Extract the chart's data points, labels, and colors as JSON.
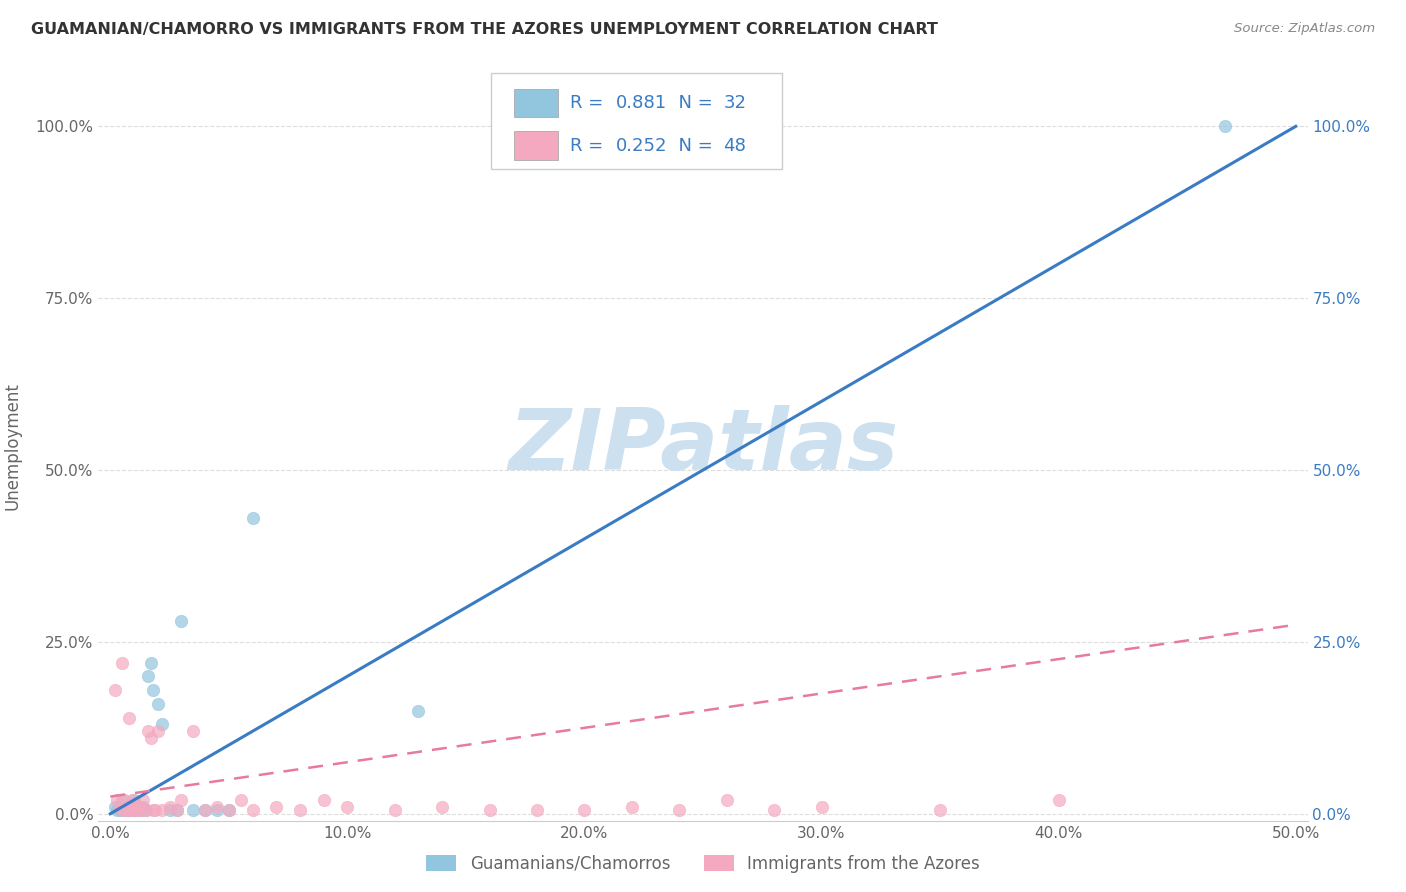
{
  "title": "GUAMANIAN/CHAMORRO VS IMMIGRANTS FROM THE AZORES UNEMPLOYMENT CORRELATION CHART",
  "source": "Source: ZipAtlas.com",
  "ylabel": "Unemployment",
  "x_ticks": [
    0.0,
    0.1,
    0.2,
    0.3,
    0.4,
    0.5
  ],
  "x_tick_labels": [
    "0.0%",
    "10.0%",
    "20.0%",
    "30.0%",
    "40.0%",
    "50.0%"
  ],
  "y_ticks": [
    0.0,
    0.25,
    0.5,
    0.75,
    1.0
  ],
  "y_tick_labels": [
    "0.0%",
    "25.0%",
    "50.0%",
    "75.0%",
    "100.0%"
  ],
  "xlim": [
    -0.005,
    0.505
  ],
  "ylim": [
    -0.01,
    1.08
  ],
  "blue_scatter_x": [
    0.002,
    0.003,
    0.004,
    0.005,
    0.005,
    0.006,
    0.007,
    0.007,
    0.008,
    0.009,
    0.01,
    0.01,
    0.011,
    0.012,
    0.013,
    0.014,
    0.015,
    0.016,
    0.017,
    0.018,
    0.02,
    0.022,
    0.025,
    0.028,
    0.03,
    0.035,
    0.04,
    0.045,
    0.05,
    0.06,
    0.13,
    0.47
  ],
  "blue_scatter_y": [
    0.01,
    0.005,
    0.005,
    0.01,
    0.02,
    0.005,
    0.01,
    0.005,
    0.005,
    0.01,
    0.005,
    0.02,
    0.005,
    0.01,
    0.005,
    0.01,
    0.005,
    0.2,
    0.22,
    0.18,
    0.16,
    0.13,
    0.005,
    0.005,
    0.28,
    0.005,
    0.005,
    0.005,
    0.005,
    0.43,
    0.15,
    1.0
  ],
  "pink_scatter_x": [
    0.002,
    0.003,
    0.004,
    0.005,
    0.005,
    0.006,
    0.007,
    0.008,
    0.008,
    0.009,
    0.01,
    0.01,
    0.011,
    0.012,
    0.013,
    0.014,
    0.015,
    0.016,
    0.017,
    0.018,
    0.019,
    0.02,
    0.022,
    0.025,
    0.028,
    0.03,
    0.035,
    0.04,
    0.045,
    0.05,
    0.055,
    0.06,
    0.07,
    0.08,
    0.09,
    0.1,
    0.12,
    0.14,
    0.16,
    0.18,
    0.2,
    0.22,
    0.24,
    0.26,
    0.28,
    0.3,
    0.35,
    0.4
  ],
  "pink_scatter_y": [
    0.18,
    0.02,
    0.01,
    0.22,
    0.005,
    0.02,
    0.005,
    0.14,
    0.005,
    0.02,
    0.005,
    0.01,
    0.005,
    0.01,
    0.005,
    0.02,
    0.005,
    0.12,
    0.11,
    0.005,
    0.005,
    0.12,
    0.005,
    0.01,
    0.005,
    0.02,
    0.12,
    0.005,
    0.01,
    0.005,
    0.02,
    0.005,
    0.01,
    0.005,
    0.02,
    0.01,
    0.005,
    0.01,
    0.005,
    0.005,
    0.005,
    0.01,
    0.005,
    0.02,
    0.005,
    0.01,
    0.005,
    0.02
  ],
  "blue_color": "#92c5de",
  "pink_color": "#f4a9c0",
  "blue_line_color": "#3a7cc4",
  "pink_line_color": "#e87aa0",
  "blue_line_x0": 0.0,
  "blue_line_y0": 0.0,
  "blue_line_x1": 0.5,
  "blue_line_y1": 1.0,
  "pink_line_x0": 0.0,
  "pink_line_y0": 0.025,
  "pink_line_x1": 0.5,
  "pink_line_y1": 0.275,
  "R_blue": "0.881",
  "N_blue": "32",
  "R_pink": "0.252",
  "N_pink": "48",
  "legend_label_blue": "Guamanians/Chamorros",
  "legend_label_pink": "Immigrants from the Azores",
  "watermark": "ZIPatlas",
  "watermark_color": "#cde0f0",
  "background_color": "#ffffff",
  "grid_color": "#dddddd",
  "title_color": "#333333",
  "axis_label_color": "#666666",
  "legend_text_color": "#3a7cc4",
  "right_tick_color": "#3a7cc4"
}
